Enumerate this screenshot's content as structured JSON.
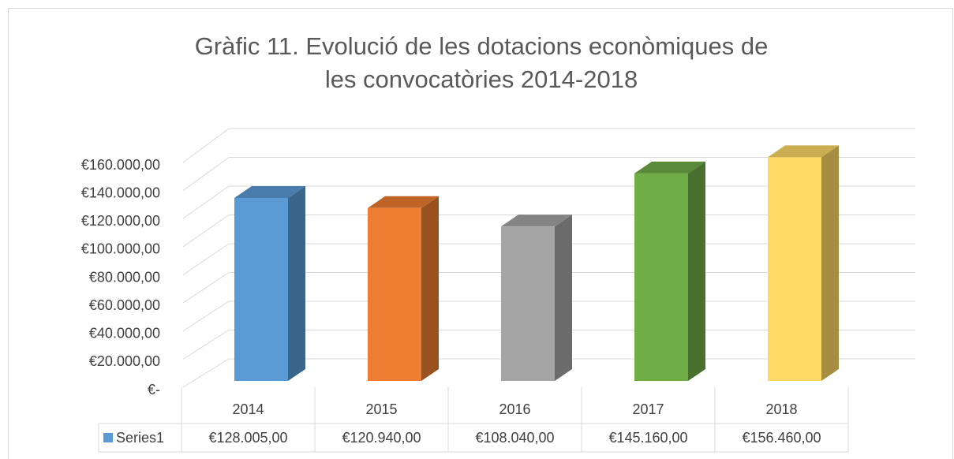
{
  "chart_data": {
    "type": "bar3d",
    "title": "Gràfic 11. Evolució de les dotacions econòmiques de les convocatòries 2014-2018",
    "categories": [
      "2014",
      "2015",
      "2016",
      "2017",
      "2018"
    ],
    "series": [
      {
        "name": "Series1",
        "colors": [
          "#5b9bd5",
          "#ed7d31",
          "#a5a5a5",
          "#70ad47",
          "#ffd966"
        ],
        "values": [
          128005,
          120940,
          108040,
          145160,
          156460
        ],
        "value_labels": [
          "€128.005,00",
          "€120.940,00",
          "€108.040,00",
          "€145.160,00",
          "€156.460,00"
        ]
      }
    ],
    "ylim": [
      0,
      160000
    ],
    "yticks": [
      {
        "value": 0,
        "label": "€-"
      },
      {
        "value": 20000,
        "label": "€20.000,00"
      },
      {
        "value": 40000,
        "label": "€40.000,00"
      },
      {
        "value": 60000,
        "label": "€60.000,00"
      },
      {
        "value": 80000,
        "label": "€80.000,00"
      },
      {
        "value": 100000,
        "label": "€100.000,00"
      },
      {
        "value": 120000,
        "label": "€120.000,00"
      },
      {
        "value": 140000,
        "label": "€140.000,00"
      },
      {
        "value": 160000,
        "label": "€160.000,00"
      }
    ],
    "grid": true
  }
}
